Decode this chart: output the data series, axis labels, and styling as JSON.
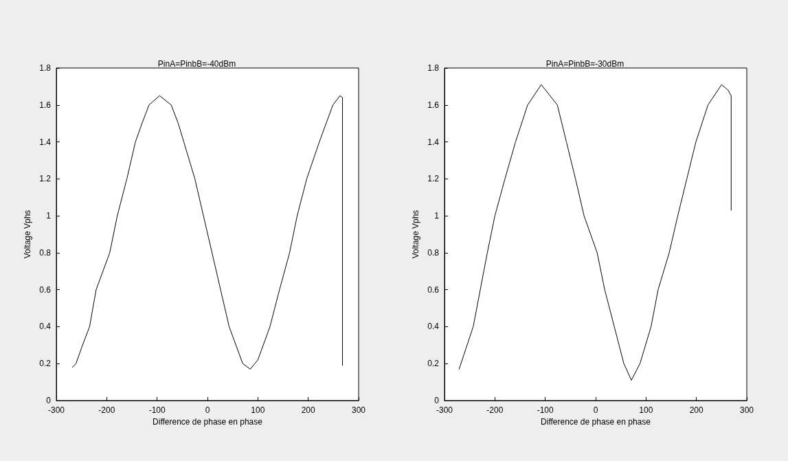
{
  "chart_data": [
    {
      "type": "line",
      "title": "PinA=PinbB=-40dBm",
      "xlabel": "Difference de phase en phase",
      "ylabel": "Voltage Vphs",
      "xlim": [
        -300,
        300
      ],
      "xticks": [
        -300,
        -200,
        -100,
        0,
        100,
        200,
        300
      ],
      "ylim": [
        0,
        1.8
      ],
      "yticks": [
        0,
        0.2,
        0.4,
        0.6,
        0.8,
        1,
        1.2,
        1.4,
        1.6,
        1.8
      ],
      "marker": "none",
      "line_style": "solid",
      "series": [
        {
          "color": "#000000",
          "x": [
            -268,
            -261,
            -248,
            -234,
            -221,
            -194,
            -179,
            -160,
            -143,
            -130,
            -116,
            -95,
            -72,
            -58,
            -47,
            -25,
            -8,
            9,
            26,
            43,
            70,
            85,
            100,
            124,
            143,
            163,
            178,
            197,
            222,
            249,
            263,
            268,
            268
          ],
          "values": [
            0.18,
            0.2,
            0.3,
            0.4,
            0.6,
            0.8,
            1.0,
            1.2,
            1.4,
            1.5,
            1.6,
            1.65,
            1.6,
            1.5,
            1.4,
            1.2,
            1.0,
            0.8,
            0.6,
            0.4,
            0.2,
            0.17,
            0.22,
            0.4,
            0.6,
            0.8,
            1.0,
            1.2,
            1.4,
            1.6,
            1.65,
            1.64,
            0.19
          ]
        }
      ]
    },
    {
      "type": "line",
      "title": "PinA=PinbB=-30dBm",
      "xlabel": "Difference de phase en phase",
      "ylabel": "Voltage Vphs",
      "xlim": [
        -300,
        300
      ],
      "xticks": [
        -300,
        -200,
        -100,
        0,
        100,
        200,
        300
      ],
      "ylim": [
        0,
        1.8
      ],
      "yticks": [
        0,
        0.2,
        0.4,
        0.6,
        0.8,
        1,
        1.2,
        1.4,
        1.6,
        1.8
      ],
      "marker": "none",
      "line_style": "solid",
      "series": [
        {
          "color": "#000000",
          "x": [
            -271,
            -243,
            -229,
            -215,
            -200,
            -180,
            -159,
            -135,
            -108,
            -76,
            -58,
            -40,
            -23,
            3,
            18,
            37,
            56,
            71,
            88,
            110,
            124,
            146,
            163,
            181,
            199,
            223,
            250,
            263,
            269,
            269
          ],
          "values": [
            0.17,
            0.4,
            0.6,
            0.8,
            1.0,
            1.2,
            1.4,
            1.6,
            1.71,
            1.6,
            1.4,
            1.2,
            1.0,
            0.8,
            0.6,
            0.4,
            0.2,
            0.11,
            0.2,
            0.4,
            0.6,
            0.8,
            1.0,
            1.2,
            1.4,
            1.6,
            1.71,
            1.68,
            1.65,
            1.03
          ]
        }
      ]
    }
  ]
}
